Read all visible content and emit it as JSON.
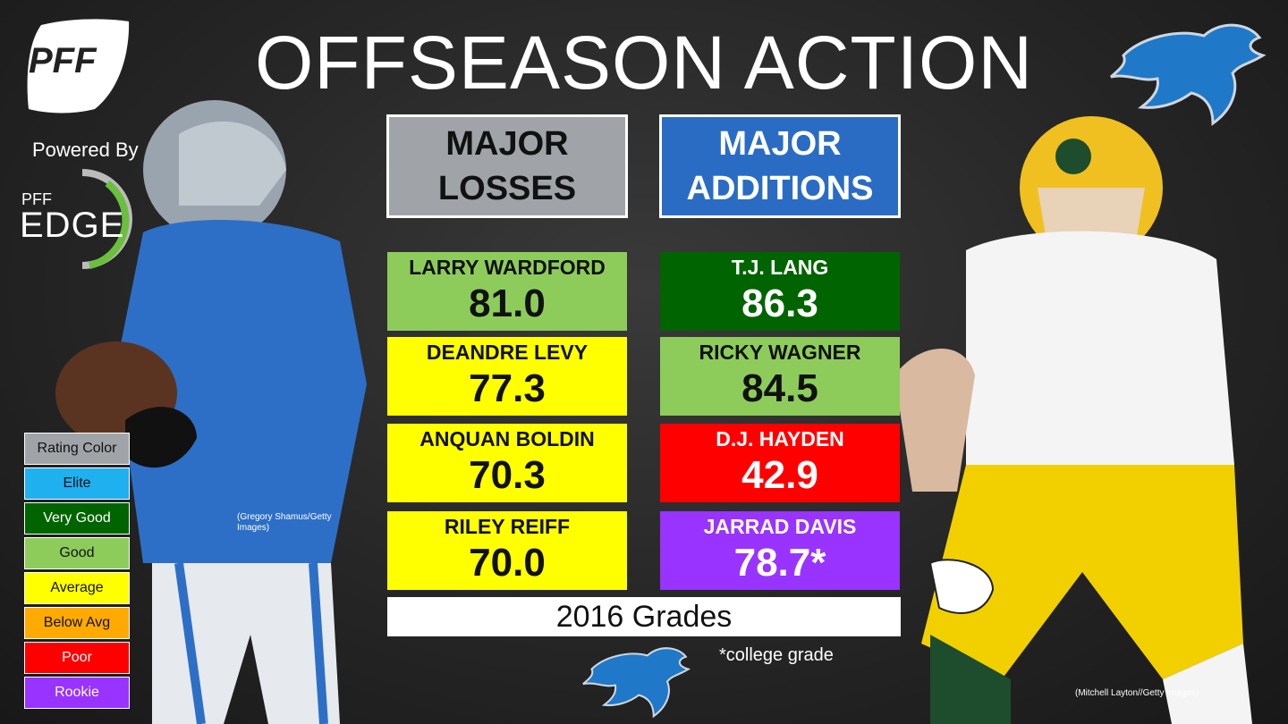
{
  "header": {
    "title": "OFFSEASON ACTION"
  },
  "branding": {
    "logo_text": "PFF",
    "powered_by": "Powered By",
    "edge_small": "PFF",
    "edge_big": "EDGE"
  },
  "columns": {
    "losses_label": "MAJOR\nLOSSES",
    "additions_label": "MAJOR\nADDITIONS"
  },
  "losses": [
    {
      "name": "LARRY WARDFORD",
      "grade": "81.0",
      "color": "#8dcc5a",
      "text_color": "#111111"
    },
    {
      "name": "DEANDRE LEVY",
      "grade": "77.3",
      "color": "#ffff00",
      "text_color": "#111111"
    },
    {
      "name": "ANQUAN BOLDIN",
      "grade": "70.3",
      "color": "#ffff00",
      "text_color": "#111111"
    },
    {
      "name": "RILEY REIFF",
      "grade": "70.0",
      "color": "#ffff00",
      "text_color": "#111111"
    }
  ],
  "additions": [
    {
      "name": "T.J. LANG",
      "grade": "86.3",
      "color": "#006400",
      "text_color": "#ffffff"
    },
    {
      "name": "RICKY WAGNER",
      "grade": "84.5",
      "color": "#8dcc5a",
      "text_color": "#111111"
    },
    {
      "name": "D.J. HAYDEN",
      "grade": "42.9",
      "color": "#ff0000",
      "text_color": "#ffffff"
    },
    {
      "name": "JARRAD DAVIS",
      "grade": "78.7*",
      "color": "#9933ff",
      "text_color": "#ffffff"
    }
  ],
  "footer": {
    "grades_label": "2016 Grades",
    "note": "*college grade"
  },
  "legend": {
    "items": [
      {
        "label": "Rating Color",
        "color": "#a0a4a8",
        "text_color": "#111111"
      },
      {
        "label": "Elite",
        "color": "#1fb0f0",
        "text_color": "#111111"
      },
      {
        "label": "Very Good",
        "color": "#006400",
        "text_color": "#ffffff"
      },
      {
        "label": "Good",
        "color": "#8dcc5a",
        "text_color": "#111111"
      },
      {
        "label": "Average",
        "color": "#ffff00",
        "text_color": "#111111"
      },
      {
        "label": "Below Avg",
        "color": "#ffaa00",
        "text_color": "#111111"
      },
      {
        "label": "Poor",
        "color": "#ff0000",
        "text_color": "#ffffff"
      },
      {
        "label": "Rookie",
        "color": "#9933ff",
        "text_color": "#ffffff"
      }
    ]
  },
  "credits": {
    "left": "(Gregory Shamus/Getty Images)",
    "right": "(Mitchell Layton//Getty Images)"
  },
  "icons": {
    "team_logo": "lion-icon",
    "brand_logo": "football-icon"
  }
}
